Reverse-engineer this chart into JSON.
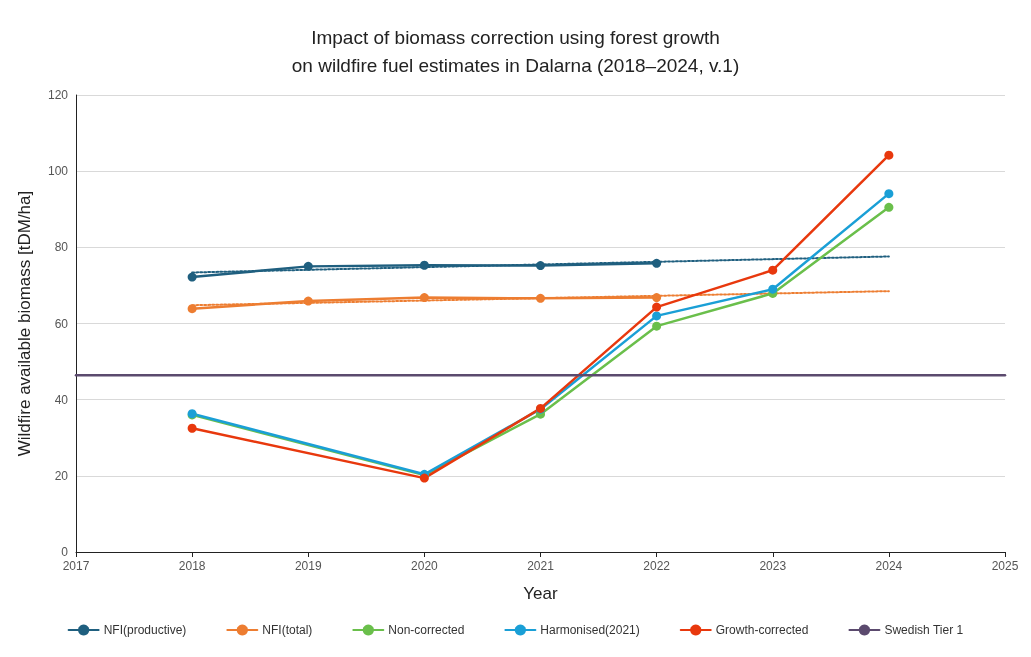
{
  "chart_data": {
    "type": "line",
    "title": "Impact of biomass correction using forest growth\non wildfire fuel estimates in Dalarna (2018–2024, v.1)",
    "xlabel": "Year",
    "ylabel": "Wildfire available biomass [tDM/ha]",
    "x": [
      2018,
      2019,
      2020,
      2021,
      2022,
      2023,
      2024
    ],
    "xlim": [
      2017,
      2025
    ],
    "xticks": [
      2017,
      2018,
      2019,
      2020,
      2021,
      2022,
      2023,
      2024,
      2025
    ],
    "ylim": [
      0,
      120
    ],
    "yticks": [
      0,
      20,
      40,
      60,
      80,
      100,
      120
    ],
    "grid": "y",
    "legend": "bottom",
    "marker": "circle",
    "line_style": "solid",
    "series": [
      {
        "name": "NFI(productive)",
        "color": "#1f5f7f",
        "values": [
          72.2,
          75.0,
          75.3,
          75.2,
          75.8,
          null,
          null
        ]
      },
      {
        "name": "NFI(total)",
        "color": "#ed7d31",
        "values": [
          63.9,
          65.9,
          66.8,
          66.6,
          66.8,
          null,
          null
        ]
      },
      {
        "name": "Non-corrected",
        "color": "#6abf4b",
        "values": [
          36.0,
          null,
          20.2,
          36.2,
          59.3,
          67.9,
          90.5
        ]
      },
      {
        "name": "Harmonised(2021)",
        "color": "#1a9fd6",
        "values": [
          36.3,
          null,
          20.4,
          37.5,
          62.0,
          69.0,
          94.1
        ]
      },
      {
        "name": "Growth-corrected",
        "color": "#e8380d",
        "values": [
          32.5,
          null,
          19.4,
          37.7,
          64.3,
          74.0,
          104.2
        ]
      },
      {
        "name": "Swedish Tier 1",
        "color": "#5b4a6e",
        "x": [
          2017,
          2025
        ],
        "values": [
          46.4,
          46.4
        ],
        "marker": "none"
      },
      {
        "color": "#1f5f7f",
        "x": [
          2018,
          2024
        ],
        "values": [
          73.4,
          77.6
        ],
        "marker": "none",
        "line_style": "dotted"
      },
      {
        "color": "#ed7d31",
        "x": [
          2018,
          2024
        ],
        "values": [
          64.8,
          68.5
        ],
        "marker": "none",
        "line_style": "dotted"
      }
    ]
  }
}
